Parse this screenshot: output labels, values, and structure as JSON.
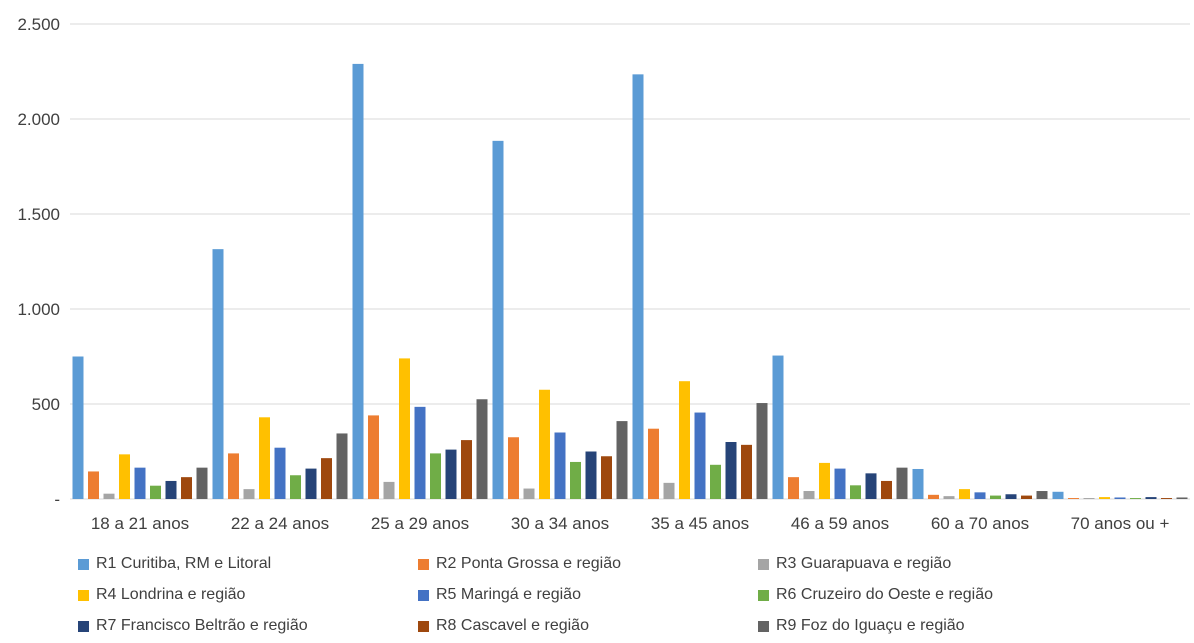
{
  "chart_data": {
    "type": "bar",
    "categories": [
      "18 a 21 anos",
      "22 a 24 anos",
      "25 a 29 anos",
      "30 a 34 anos",
      "35 a 45 anos",
      "46 a 59 anos",
      "60 a 70 anos",
      "70 anos ou +"
    ],
    "ylim": [
      0,
      2500
    ],
    "yticks": [
      0,
      500,
      1000,
      1500,
      2000,
      2500
    ],
    "ytick_labels": [
      "-",
      "500",
      "1.000",
      "1.500",
      "2.000",
      "2.500"
    ],
    "grid": true,
    "legend_position": "bottom",
    "series": [
      {
        "name": "R1 Curitiba, RM e Litoral",
        "color": "#5B9BD5",
        "values": [
          750,
          1315,
          2290,
          1885,
          2235,
          755,
          158,
          38
        ]
      },
      {
        "name": "R2 Ponta Grossa e região",
        "color": "#ED7D31",
        "values": [
          145,
          240,
          440,
          325,
          370,
          115,
          22,
          5
        ]
      },
      {
        "name": "R3 Guarapuava e região",
        "color": "#A5A5A5",
        "values": [
          28,
          52,
          90,
          55,
          85,
          42,
          15,
          5
        ]
      },
      {
        "name": "R4 Londrina e região",
        "color": "#FFC000",
        "values": [
          235,
          430,
          740,
          575,
          620,
          190,
          52,
          10
        ]
      },
      {
        "name": "R5 Maringá e região",
        "color": "#4472C4",
        "values": [
          165,
          270,
          485,
          350,
          455,
          160,
          35,
          8
        ]
      },
      {
        "name": "R6 Cruzeiro do Oeste e região",
        "color": "#70AD47",
        "values": [
          70,
          125,
          240,
          195,
          180,
          72,
          18,
          5
        ]
      },
      {
        "name": "R7 Francisco Beltrão e região",
        "color": "#264478",
        "values": [
          95,
          160,
          260,
          250,
          300,
          135,
          25,
          10
        ]
      },
      {
        "name": "R8 Cascavel e região",
        "color": "#9E480E",
        "values": [
          115,
          215,
          310,
          225,
          285,
          95,
          18,
          5
        ]
      },
      {
        "name": "R9 Foz do Iguaçu e região",
        "color": "#636363",
        "values": [
          165,
          345,
          525,
          410,
          505,
          165,
          42,
          8
        ]
      }
    ]
  }
}
